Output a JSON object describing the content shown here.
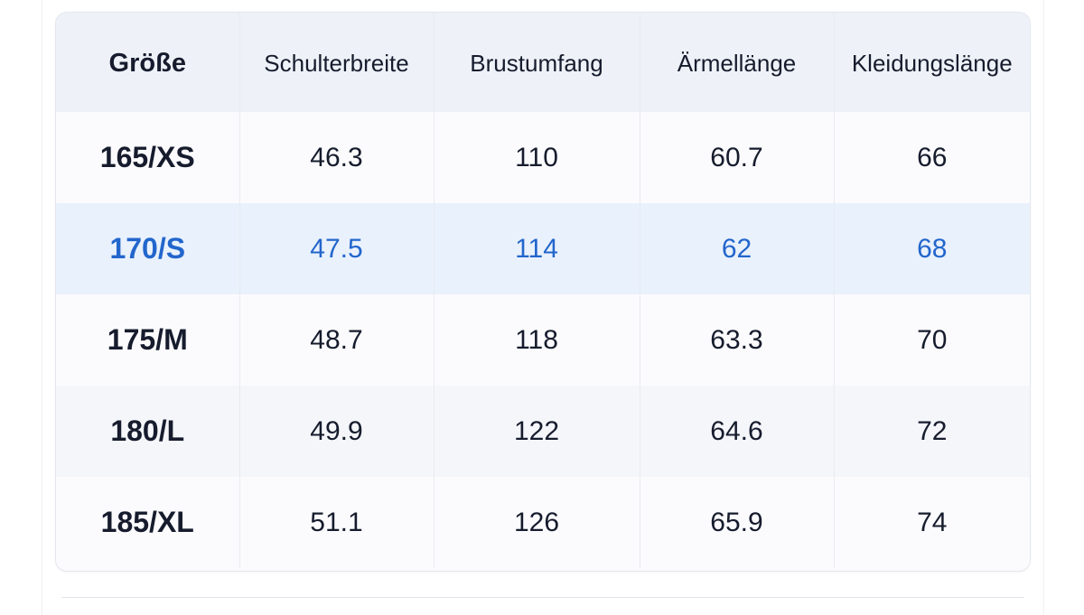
{
  "table": {
    "headers": [
      "Größe",
      "Schulterbreite",
      "Brustumfang",
      "Ärmellänge",
      "Kleidungslänge"
    ],
    "highlighted_row_index": 1,
    "highlight_color": "#2266cc",
    "rows": [
      [
        "165/XS",
        "46.3",
        "110",
        "60.7",
        "66"
      ],
      [
        "170/S",
        "47.5",
        "114",
        "62",
        "68"
      ],
      [
        "175/M",
        "48.7",
        "118",
        "63.3",
        "70"
      ],
      [
        "180/L",
        "49.9",
        "122",
        "64.6",
        "72"
      ],
      [
        "185/XL",
        "51.1",
        "126",
        "65.9",
        "74"
      ]
    ]
  }
}
